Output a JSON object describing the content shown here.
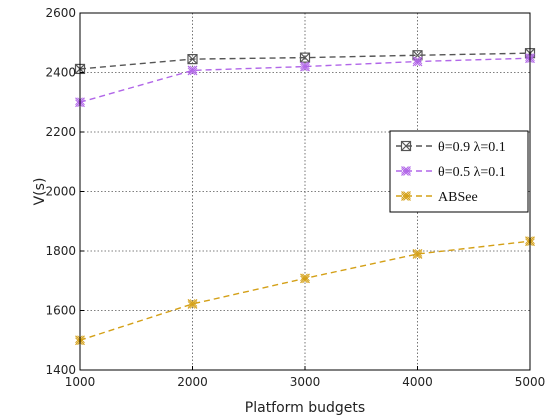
{
  "chart_data": {
    "type": "line",
    "xlabel": "Platform budgets",
    "ylabel": "V(s)",
    "x": [
      1000,
      2000,
      3000,
      4000,
      5000
    ],
    "xlim": [
      1000,
      5000
    ],
    "ylim": [
      1400,
      2600
    ],
    "xticks": [
      "1000",
      "2000",
      "3000",
      "4000",
      "5000"
    ],
    "yticks": [
      "1400",
      "1600",
      "1800",
      "2000",
      "2200",
      "2400",
      "2600"
    ],
    "grid": true,
    "legend_position": "center-right",
    "series": [
      {
        "name": "θ=0.9  λ=0.1",
        "values": [
          2412,
          2445,
          2450,
          2458,
          2465
        ],
        "color": "#555555",
        "marker": "boxed-x"
      },
      {
        "name": "θ=0.5  λ=0.1",
        "values": [
          2300,
          2407,
          2420,
          2437,
          2448
        ],
        "color": "#b166e8",
        "marker": "x"
      },
      {
        "name": "ABSee",
        "values": [
          1500,
          1622,
          1708,
          1790,
          1833
        ],
        "color": "#d4a017",
        "marker": "x"
      }
    ]
  }
}
